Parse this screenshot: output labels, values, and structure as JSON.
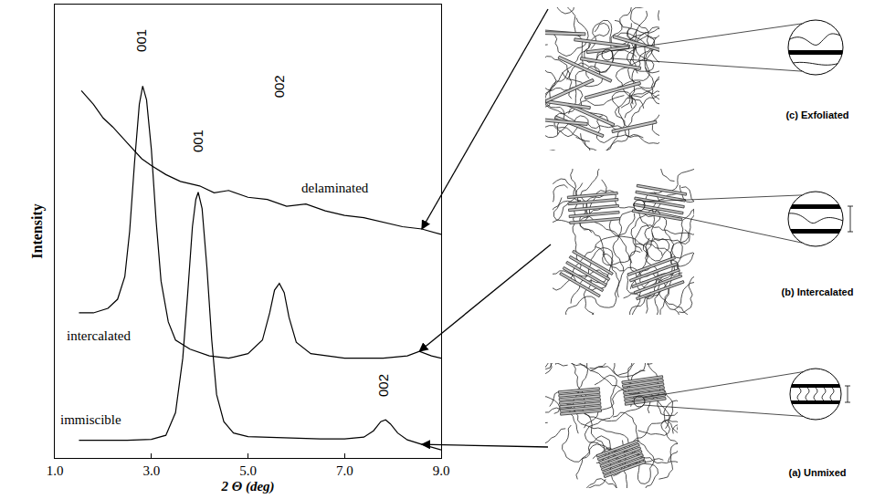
{
  "chart_data": {
    "type": "line",
    "x_label": "2 Θ (deg)",
    "y_label": "Intensity",
    "xlim": [
      1,
      9
    ],
    "xticks": [
      {
        "value": 1,
        "label": "1.0"
      },
      {
        "value": 3,
        "label": "3.0"
      },
      {
        "value": 5,
        "label": "5.0"
      },
      {
        "value": 7,
        "label": "7.0"
      },
      {
        "value": 9,
        "label": "9.0"
      }
    ],
    "ylim": [
      0,
      100
    ],
    "tick_labels": "x",
    "grid": false,
    "series": [
      {
        "name": "delaminated",
        "color": "#000000",
        "name_at": [
          6.8,
          59.5
        ],
        "x": [
          1.55,
          1.8,
          2.0,
          2.2,
          2.5,
          2.8,
          3.0,
          3.3,
          3.6,
          4.0,
          4.3,
          4.6,
          5.0,
          5.4,
          5.8,
          6.2,
          6.6,
          7.0,
          7.4,
          7.8,
          8.2,
          8.6,
          9.0
        ],
        "values": [
          81,
          78,
          75,
          73,
          69.5,
          66,
          64.5,
          62.5,
          61,
          60,
          58.5,
          59,
          57.5,
          57,
          55.5,
          56,
          54.5,
          53.5,
          53,
          52,
          51,
          50.5,
          49.3
        ]
      },
      {
        "name": "intercalated",
        "color": "#000000",
        "name_at": [
          1.9,
          27
        ],
        "x": [
          1.5,
          1.8,
          2.1,
          2.3,
          2.45,
          2.55,
          2.65,
          2.75,
          2.82,
          2.9,
          3.0,
          3.1,
          3.2,
          3.35,
          3.5,
          3.8,
          4.2,
          4.6,
          5.0,
          5.3,
          5.45,
          5.55,
          5.65,
          5.75,
          5.85,
          6.0,
          6.3,
          7.0,
          7.8,
          8.3,
          8.55,
          8.8,
          9.0
        ],
        "values": [
          32,
          32,
          33,
          35,
          40,
          50,
          65,
          78,
          82,
          79,
          68,
          52,
          39,
          30,
          26,
          24,
          22.5,
          22,
          23,
          26,
          32,
          37,
          38.5,
          36.5,
          31,
          25.5,
          23,
          22,
          22,
          22.5,
          23.5,
          22.5,
          22
        ]
      },
      {
        "name": "immiscible",
        "color": "#000000",
        "name_at": [
          1.75,
          8.5
        ],
        "x": [
          1.5,
          2.0,
          2.5,
          3.0,
          3.3,
          3.5,
          3.65,
          3.75,
          3.85,
          3.92,
          3.97,
          4.05,
          4.15,
          4.25,
          4.35,
          4.5,
          4.7,
          5.0,
          5.5,
          6.0,
          6.5,
          7.0,
          7.4,
          7.6,
          7.75,
          7.85,
          7.95,
          8.1,
          8.3,
          8.6,
          9.0
        ],
        "values": [
          3.9,
          3.9,
          3.9,
          4.1,
          5,
          10,
          22,
          36,
          51,
          57,
          58.6,
          55,
          42,
          26,
          14,
          8,
          5.5,
          4.7,
          4.5,
          4.3,
          4.2,
          4.2,
          4.6,
          6,
          8,
          8.4,
          7.5,
          5.5,
          4,
          3,
          1.8
        ]
      }
    ],
    "annotations": [
      {
        "text": "001",
        "x": 2.8,
        "y": 92
      },
      {
        "text": "001",
        "x": 3.95,
        "y": 70
      },
      {
        "text": "002",
        "x": 5.65,
        "y": 82
      },
      {
        "text": "002",
        "x": 7.8,
        "y": 16
      }
    ]
  },
  "diagrams": [
    {
      "label": "(c) Exfoliated",
      "curve": "delaminated"
    },
    {
      "label": "(b) Intercalated",
      "curve": "intercalated"
    },
    {
      "label": "(a) Unmixed",
      "curve": "immiscible"
    }
  ]
}
